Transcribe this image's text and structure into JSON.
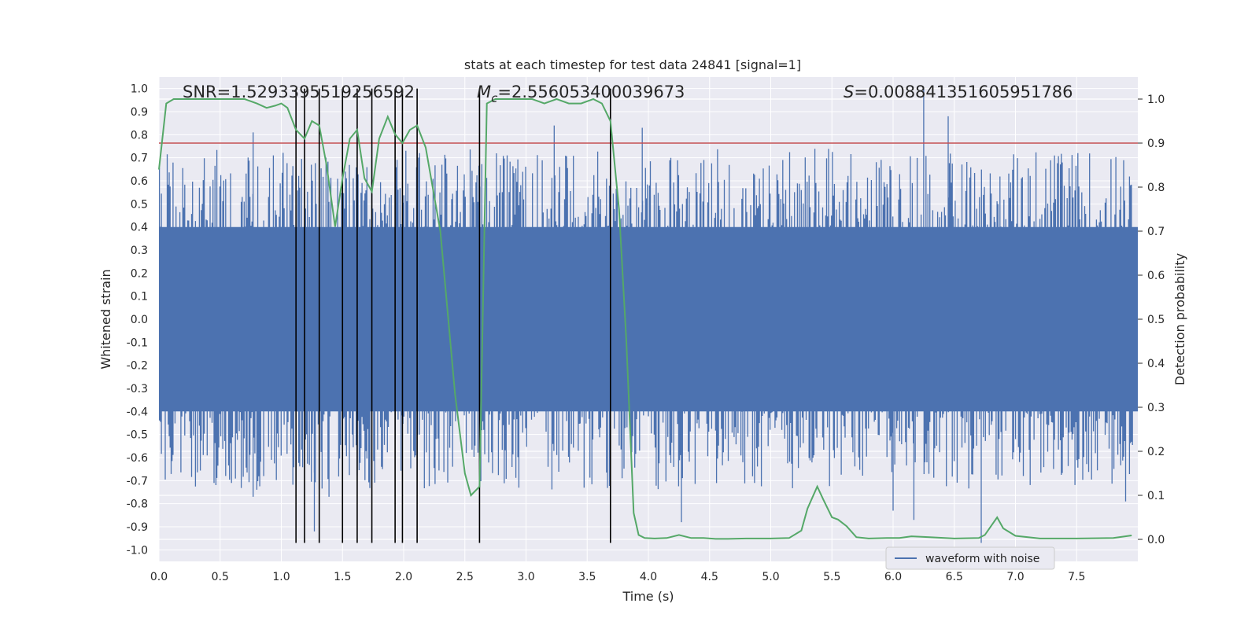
{
  "chart_data": {
    "type": "line",
    "title": "stats at each timestep for test data 24841 [signal=1]",
    "xlabel": "Time (s)",
    "ylabel": "Whitened strain",
    "y2label": "Detection probability",
    "xlim": [
      0.0,
      8.0
    ],
    "ylim": [
      -1.05,
      1.05
    ],
    "y2lim": [
      -0.05,
      1.05
    ],
    "xticks": [
      "0.0",
      "0.5",
      "1.0",
      "1.5",
      "2.0",
      "2.5",
      "3.0",
      "3.5",
      "4.0",
      "4.5",
      "5.0",
      "5.5",
      "6.0",
      "6.5",
      "7.0",
      "7.5"
    ],
    "yticks": [
      "1.0",
      "0.9",
      "0.8",
      "0.7",
      "0.6",
      "0.5",
      "0.4",
      "0.3",
      "0.2",
      "0.1",
      "0.0",
      "-0.1",
      "-0.2",
      "-0.3",
      "-0.4",
      "-0.5",
      "-0.6",
      "-0.7",
      "-0.8",
      "-0.9",
      "-1.0"
    ],
    "y2ticks": [
      "1.0",
      "0.9",
      "0.8",
      "0.7",
      "0.6",
      "0.5",
      "0.4",
      "0.3",
      "0.2",
      "0.1",
      "0.0"
    ],
    "annotations": {
      "snr": "SNR=1.5293395519256592",
      "mc_symbol": "M",
      "mc_sub": "c",
      "mc_value": "=2.556053400039673",
      "s_symbol": "S",
      "s_value": "=0.008841351605951786"
    },
    "threshold": 0.9,
    "detection_times": [
      1.12,
      1.19,
      1.31,
      1.5,
      1.62,
      1.74,
      1.93,
      1.99,
      2.11,
      2.62,
      3.69
    ],
    "waveform": {
      "name": "waveform with noise",
      "color": "#4c72b0",
      "core_amplitude": 0.4,
      "max_abs": 1.0,
      "peaks": [
        {
          "t": 0.77,
          "v": 0.81
        },
        {
          "t": 0.77,
          "v": -0.77
        },
        {
          "t": 1.27,
          "v": -0.92
        },
        {
          "t": 1.39,
          "v": -0.77
        },
        {
          "t": 2.13,
          "v": 0.72
        },
        {
          "t": 3.23,
          "v": 0.84
        },
        {
          "t": 3.95,
          "v": 0.83
        },
        {
          "t": 4.27,
          "v": -0.88
        },
        {
          "t": 6.0,
          "v": -0.83
        },
        {
          "t": 6.17,
          "v": -0.87
        },
        {
          "t": 6.25,
          "v": 1.0
        },
        {
          "t": 6.45,
          "v": 0.88
        },
        {
          "t": 6.72,
          "v": -0.97
        },
        {
          "t": 7.9,
          "v": -0.79
        },
        {
          "t": 0.45,
          "v": -0.71
        }
      ]
    },
    "probability": {
      "color": "#55a868",
      "t": [
        0.0,
        0.06,
        0.12,
        0.2,
        0.3,
        0.4,
        0.5,
        0.6,
        0.7,
        0.8,
        0.88,
        0.95,
        1.0,
        1.05,
        1.12,
        1.19,
        1.25,
        1.31,
        1.37,
        1.44,
        1.5,
        1.56,
        1.62,
        1.68,
        1.74,
        1.8,
        1.87,
        1.93,
        1.99,
        2.05,
        2.11,
        2.18,
        2.3,
        2.42,
        2.5,
        2.55,
        2.62,
        2.68,
        2.75,
        2.85,
        2.95,
        3.05,
        3.15,
        3.25,
        3.35,
        3.45,
        3.55,
        3.62,
        3.69,
        3.76,
        3.82,
        3.88,
        3.92,
        3.97,
        4.05,
        4.15,
        4.25,
        4.35,
        4.45,
        4.55,
        4.65,
        4.8,
        5.0,
        5.15,
        5.25,
        5.3,
        5.38,
        5.43,
        5.5,
        5.55,
        5.62,
        5.7,
        5.8,
        5.95,
        6.05,
        6.15,
        6.3,
        6.5,
        6.7,
        6.75,
        6.8,
        6.85,
        6.9,
        7.0,
        7.2,
        7.5,
        7.8,
        7.95
      ],
      "p": [
        0.84,
        0.99,
        1.0,
        1.0,
        1.0,
        1.0,
        1.0,
        1.0,
        1.0,
        0.99,
        0.98,
        0.985,
        0.99,
        0.98,
        0.93,
        0.91,
        0.95,
        0.94,
        0.85,
        0.71,
        0.82,
        0.91,
        0.93,
        0.82,
        0.79,
        0.91,
        0.96,
        0.92,
        0.9,
        0.93,
        0.94,
        0.89,
        0.7,
        0.33,
        0.15,
        0.1,
        0.12,
        0.99,
        1.0,
        1.0,
        1.0,
        1.0,
        0.99,
        1.0,
        0.99,
        0.99,
        1.0,
        0.99,
        0.95,
        0.75,
        0.45,
        0.06,
        0.01,
        0.003,
        0.002,
        0.003,
        0.01,
        0.003,
        0.003,
        0.001,
        0.001,
        0.002,
        0.002,
        0.003,
        0.02,
        0.07,
        0.12,
        0.09,
        0.05,
        0.045,
        0.03,
        0.005,
        0.002,
        0.003,
        0.003,
        0.007,
        0.005,
        0.002,
        0.003,
        0.01,
        0.03,
        0.05,
        0.025,
        0.008,
        0.002,
        0.002,
        0.003,
        0.009
      ]
    },
    "legend": {
      "label": "waveform with noise",
      "location": "lower center"
    }
  }
}
